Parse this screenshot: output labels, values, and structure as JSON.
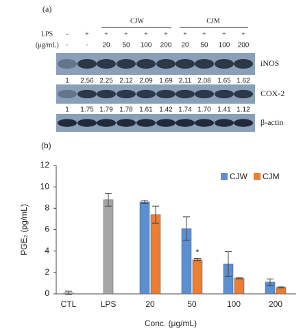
{
  "panel_a": {
    "label": "(a)",
    "groups": [
      "CJW",
      "CJM"
    ],
    "lps_label": "LPS",
    "conc_label": "(μg/mL)",
    "lps": [
      "-",
      "+",
      "+",
      "+",
      "+",
      "+",
      "+",
      "+",
      "+",
      "+"
    ],
    "conc": [
      "-",
      "-",
      "20",
      "50",
      "100",
      "200",
      "20",
      "50",
      "100",
      "200"
    ],
    "bands": [
      {
        "name": "iNOS",
        "ratios": [
          "1",
          "2.56",
          "2.25",
          "2.12",
          "2.09",
          "1.69",
          "2.11",
          "2.08",
          "1.65",
          "1.62"
        ]
      },
      {
        "name": "COX-2",
        "ratios": [
          "1",
          "1.75",
          "1.79",
          "1.78",
          "1.61",
          "1.42",
          "1.74",
          "1.70",
          "1.41",
          "1.12"
        ]
      },
      {
        "name": "β-actin"
      }
    ]
  },
  "chart_data": {
    "type": "bar",
    "label": "(b)",
    "ylabel": "PGE₂ (pg/mL)",
    "xlabel": "Conc. (μg/mL)",
    "categories": [
      "CTL",
      "LPS",
      "20",
      "50",
      "100",
      "200"
    ],
    "series": [
      {
        "color": "#a6a6a6",
        "values": [
          0.1,
          8.8,
          null,
          null,
          null,
          null
        ],
        "errors": [
          0.15,
          0.6,
          null,
          null,
          null,
          null
        ]
      },
      {
        "name": "CJW",
        "color": "#5b8fd0",
        "values": [
          null,
          null,
          8.6,
          6.1,
          2.8,
          1.1
        ],
        "errors": [
          null,
          null,
          0.15,
          1.1,
          1.15,
          0.3
        ]
      },
      {
        "name": "CJM",
        "color": "#ed7d31",
        "values": [
          null,
          null,
          7.4,
          3.2,
          1.45,
          0.6
        ],
        "errors": [
          null,
          null,
          0.8,
          0.1,
          0.05,
          0.05
        ]
      }
    ],
    "annotations": [
      {
        "text": "*"
      }
    ],
    "ylim": [
      0,
      12
    ],
    "yticks": [
      0,
      2,
      4,
      6,
      8,
      10,
      12
    ],
    "legend": "top-right"
  }
}
